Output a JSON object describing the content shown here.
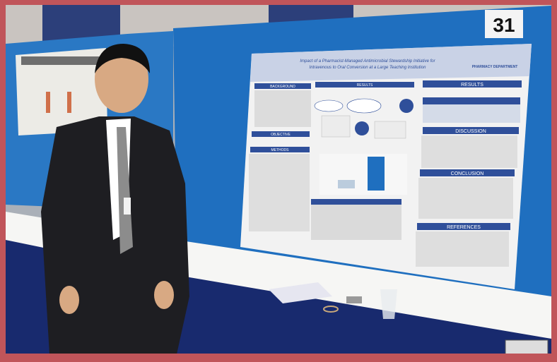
{
  "board_number": "31",
  "poster": {
    "title_line1": "Impact of a Pharmacist-Managed Antimicrobial Stewardship Initiative for",
    "title_line2": "Intravenous to Oral Conversion at a Large Teaching Institution",
    "logo_text": "PHARMACY DEPARTMENT",
    "sections": {
      "background": "BACKGROUND",
      "objective": "OBJECTIVE",
      "methods": "METHODS",
      "results_center": "RESULTS",
      "results_right": "RESULTS",
      "discussion": "DISCUSSION",
      "conclusion": "CONCLUSION",
      "references": "REFERENCES"
    }
  },
  "colors": {
    "frame": "#c0555a",
    "wall": "#1f6fbf",
    "poster_bg": "#f2f2f2",
    "poster_header": "#2f4f9a",
    "suit": "#1e1e22",
    "table": "#f6f6f4",
    "skirt": "#182a6e"
  }
}
